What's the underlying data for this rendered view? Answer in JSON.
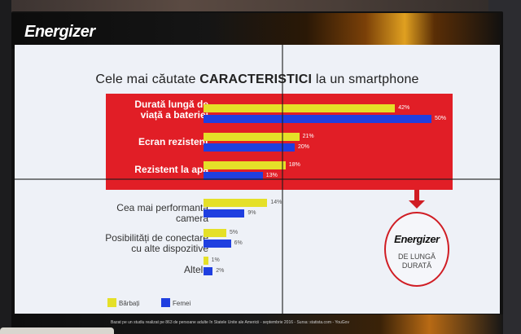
{
  "brand": {
    "name": "Energizer"
  },
  "chart_data": {
    "type": "bar",
    "orientation": "horizontal",
    "title_prefix": "Cele mai căutate",
    "title_emphasis": "CARACTERISTICI",
    "title_suffix": "la un smartphone",
    "categories": [
      "Durată lungă de viață a bateriei",
      "Ecran rezistent",
      "Rezistent la apă",
      "Cea mai performantă cameră",
      "Posibilități de conectare cu alte dispozitive",
      "Altele"
    ],
    "series": [
      {
        "name": "Bărbați",
        "color": "#e5e028",
        "values": [
          42,
          21,
          18,
          14,
          5,
          1
        ]
      },
      {
        "name": "Femei",
        "color": "#1f3fe0",
        "values": [
          50,
          20,
          13,
          9,
          6,
          2
        ]
      }
    ],
    "value_labels": [
      [
        "42%",
        "21%",
        "18%",
        "14%",
        "5%",
        "1%"
      ],
      [
        "50%",
        "20%",
        "13%",
        "9%",
        "6%",
        "2%"
      ]
    ],
    "xlim": [
      0,
      50
    ],
    "highlight_color": "#e11e26",
    "legend_position": "bottom-left"
  },
  "labels": {
    "cat0_line1": "Durată lungă de",
    "cat0_line2": "viață a bateriei",
    "cat1": "Ecran rezistent",
    "cat2": "Rezistent la apă",
    "cat3_line1": "Cea mai performantă",
    "cat3_line2": "cameră",
    "cat4_line1": "Posibilități de conectare",
    "cat4_line2": "cu alte dispozitive",
    "cat5": "Altele"
  },
  "badge": {
    "logo": "Energizer",
    "line1": "DE LUNGĂ",
    "line2": "DURATĂ"
  },
  "footer": {
    "text": "Bazat pe un studiu realizat pe 863 de persoane adulte în Statele Unite ale Americii - septembrie 2016 - Sursa: statista.com - YouGov"
  }
}
